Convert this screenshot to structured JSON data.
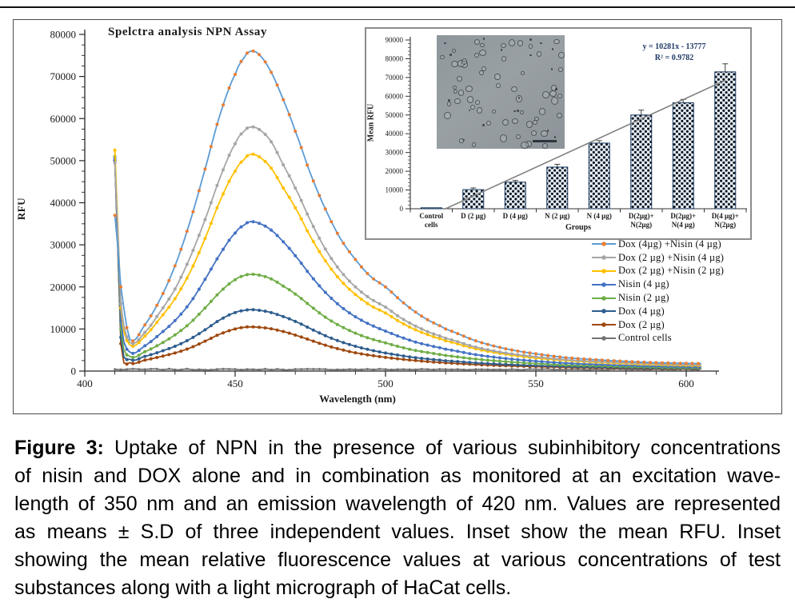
{
  "chart_data": [
    {
      "id": "spectra",
      "type": "line",
      "title": "Spelctra analysis NPN Assay",
      "xlabel": "Wavelength (nm)",
      "ylabel": "RFU",
      "xlim": [
        400,
        610
      ],
      "ylim": [
        0,
        80000
      ],
      "xticks": [
        400,
        450,
        500,
        550,
        600
      ],
      "yticks": [
        0,
        10000,
        20000,
        30000,
        40000,
        50000,
        60000,
        70000,
        80000
      ],
      "grid": false,
      "legend_position": "right-bottom-outside",
      "x_anchors": [
        410,
        412,
        415,
        420,
        425,
        430,
        435,
        440,
        445,
        450,
        453,
        455,
        458,
        462,
        466,
        470,
        475,
        480,
        485,
        490,
        495,
        500,
        505,
        510,
        515,
        520,
        530,
        540,
        550,
        560,
        570,
        580,
        590,
        600,
        605
      ],
      "series": [
        {
          "name": "Dox (4µg) +Nisin (4 µg)",
          "line_color": "#5B9BD5",
          "marker_color": "#ED7D31",
          "values": [
            37000,
            20000,
            7500,
            11000,
            17000,
            25000,
            35500,
            48000,
            61000,
            70500,
            74500,
            76000,
            75200,
            71000,
            64500,
            57000,
            47000,
            38500,
            31500,
            26500,
            22500,
            20000,
            16800,
            14000,
            11800,
            10000,
            7200,
            5300,
            4100,
            3200,
            2700,
            2300,
            2000,
            1850,
            1800
          ]
        },
        {
          "name": "Dox (2 µg) +Nisin (4 µg)",
          "line_color": "#A6A6A6",
          "marker_color": "#A6A6A6",
          "values": [
            49500,
            16000,
            6800,
            9200,
            14000,
            19500,
            27000,
            36000,
            46000,
            54000,
            57000,
            58000,
            57400,
            54500,
            49000,
            43500,
            35800,
            29000,
            23800,
            20000,
            17200,
            15200,
            12700,
            10700,
            9100,
            7800,
            5700,
            4300,
            3400,
            2700,
            2300,
            2000,
            1750,
            1550,
            1500
          ]
        },
        {
          "name": "Dox (2 µg) +Nisin (2 µg)",
          "line_color": "#FFC000",
          "marker_color": "#FFC000",
          "values": [
            52500,
            15000,
            6200,
            8300,
            12500,
            17200,
            23500,
            31500,
            40500,
            47500,
            50300,
            51500,
            50900,
            48200,
            43500,
            38800,
            32000,
            26200,
            21600,
            18200,
            15600,
            13800,
            11600,
            9800,
            8400,
            7200,
            5300,
            4000,
            3100,
            2500,
            2100,
            1800,
            1550,
            1350,
            1300
          ]
        },
        {
          "name": "Nisin (4 µg)",
          "line_color": "#4472C4",
          "marker_color": "#4472C4",
          "values": [
            50500,
            12000,
            4500,
            6000,
            8800,
            12000,
            16200,
            21800,
            27800,
            32800,
            34700,
            35500,
            35100,
            33500,
            30700,
            27400,
            22800,
            18700,
            15400,
            12900,
            11000,
            9500,
            8100,
            6900,
            6000,
            5200,
            3900,
            3000,
            2350,
            1900,
            1600,
            1350,
            1150,
            1000,
            950
          ]
        },
        {
          "name": "Nisin (2 µg)",
          "line_color": "#70AD47",
          "marker_color": "#70AD47",
          "values": [
            51000,
            10000,
            3500,
            4600,
            6400,
            8600,
            11400,
            15000,
            18800,
            21700,
            22700,
            23000,
            22800,
            21900,
            20200,
            18300,
            15500,
            12800,
            10700,
            9000,
            7700,
            6700,
            5700,
            4900,
            4300,
            3700,
            2850,
            2250,
            1800,
            1450,
            1250,
            1050,
            900,
            780,
            750
          ]
        },
        {
          "name": "Dox (4 µg)",
          "line_color": "#2E5D8E",
          "marker_color": "#2E5D8E",
          "values": [
            50000,
            8000,
            2800,
            3500,
            4600,
            5900,
            7600,
            9800,
            12200,
            13900,
            14400,
            14600,
            14450,
            13900,
            12950,
            11800,
            10100,
            8400,
            7000,
            5900,
            5000,
            4300,
            3700,
            3200,
            2800,
            2450,
            1950,
            1570,
            1300,
            1100,
            950,
            830,
            730,
            650,
            620
          ]
        },
        {
          "name": "Dox (2 µg)",
          "line_color": "#9E480E",
          "marker_color": "#9E480E",
          "values": [
            50000,
            6500,
            2000,
            2600,
            3400,
            4300,
            5500,
            7100,
            8800,
            10000,
            10400,
            10500,
            10400,
            10050,
            9400,
            8550,
            7350,
            6150,
            5150,
            4350,
            3750,
            3250,
            2850,
            2500,
            2200,
            1950,
            1550,
            1270,
            1070,
            900,
            780,
            680,
            600,
            530,
            510
          ]
        },
        {
          "name": "Control cells",
          "line_color": "#737373",
          "marker_color": "#737373",
          "flat_value": 400,
          "noise": 240
        }
      ]
    },
    {
      "id": "mean-rfu",
      "type": "bar",
      "xlabel": "Groups",
      "ylabel": "Mean RFU",
      "ylim": [
        0,
        90000
      ],
      "yticks": [
        0,
        10000,
        20000,
        30000,
        40000,
        50000,
        60000,
        70000,
        80000,
        90000
      ],
      "categories": [
        "Control\ncells",
        "D (2 µg)",
        "D (4 µg)",
        "N (2 µg)",
        "N (4 µg)",
        "D(2µg)+\nN(2µg)",
        "D(2µg)+\nN(4 µg)",
        "D(4 µg)+\nN(2µg)"
      ],
      "values": [
        500,
        10200,
        14200,
        22200,
        35000,
        50000,
        56500,
        73000
      ],
      "errors": [
        250,
        900,
        900,
        1500,
        1300,
        2600,
        1800,
        4300
      ],
      "trendline": {
        "equation": "y = 10281x  - 13777",
        "r2": "R² = 0.9782",
        "slope": 10281,
        "intercept": -13777,
        "color": "#808080"
      },
      "bar_style": {
        "pattern": "black-diamond-dots",
        "fill_bg": "#edf2f9",
        "border": "#17365D"
      },
      "micrograph": {
        "description": "light micrograph of HaCat cells",
        "scale_bar": true
      }
    }
  ],
  "caption": {
    "prefix": "Figure 3:",
    "lines": [
      "Uptake of NPN in the presence of various subinhibitory concentrations",
      "of nisin and DOX alone and in combination as monitored at an excitation wave-",
      "length of 350 nm and an emission wavelength of 420 nm. Values are represented",
      "as means ± S.D of three independent values. Inset show the mean RFU. Inset",
      "showing the mean relative fluorescence values at various concentrations of test",
      "substances along with a light micrograph of HaCat cells."
    ]
  },
  "colors": {
    "axis": "#262626",
    "figure_border": "#4d4d4d",
    "inset_border": "#8c8c8c",
    "equation_text": "#1F3864",
    "error_bar": "#3f3f3f"
  }
}
